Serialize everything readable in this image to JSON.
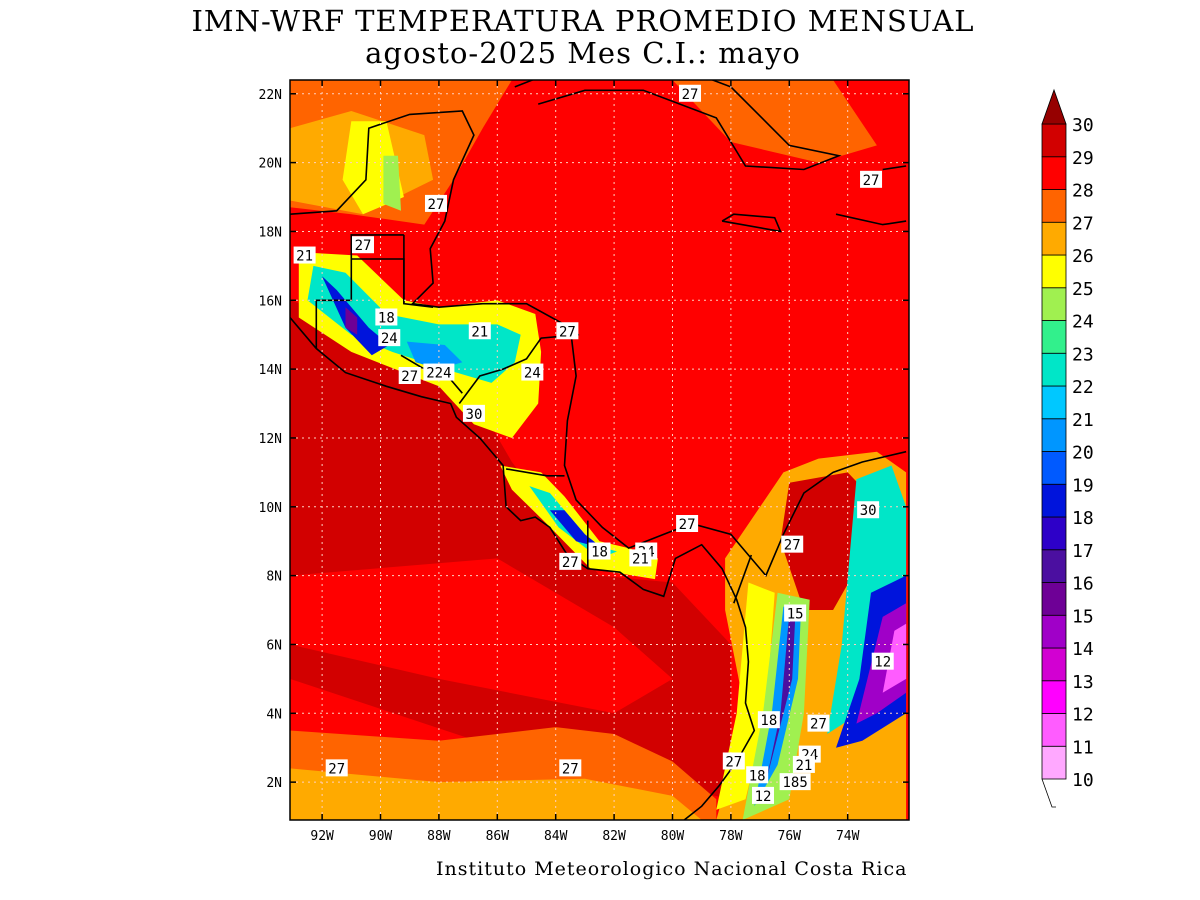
{
  "title": {
    "line1": "IMN-WRF  TEMPERATURA PROMEDIO MENSUAL",
    "line2": "agosto-2025 Mes C.I.: mayo"
  },
  "credit": "Instituto Meteorologico Nacional Costa Rica",
  "map": {
    "lon_range": [
      -93.1,
      -71.9
    ],
    "lat_range": [
      0.9,
      22.4
    ],
    "lon_ticks": [
      {
        "lon": -92,
        "label": "92W"
      },
      {
        "lon": -90,
        "label": "90W"
      },
      {
        "lon": -88,
        "label": "88W"
      },
      {
        "lon": -86,
        "label": "86W"
      },
      {
        "lon": -84,
        "label": "84W"
      },
      {
        "lon": -82,
        "label": "82W"
      },
      {
        "lon": -80,
        "label": "80W"
      },
      {
        "lon": -78,
        "label": "78W"
      },
      {
        "lon": -76,
        "label": "76W"
      },
      {
        "lon": -74,
        "label": "74W"
      }
    ],
    "lat_ticks": [
      {
        "lat": 2,
        "label": "2N"
      },
      {
        "lat": 4,
        "label": "4N"
      },
      {
        "lat": 6,
        "label": "6N"
      },
      {
        "lat": 8,
        "label": "8N"
      },
      {
        "lat": 10,
        "label": "10N"
      },
      {
        "lat": 12,
        "label": "12N"
      },
      {
        "lat": 14,
        "label": "14N"
      },
      {
        "lat": 16,
        "label": "16N"
      },
      {
        "lat": 18,
        "label": "18N"
      },
      {
        "lat": 20,
        "label": "20N"
      },
      {
        "lat": 22,
        "label": "22N"
      }
    ],
    "grid": true,
    "contour_labels": [
      {
        "lon": -79.4,
        "lat": 22.0,
        "text": "27"
      },
      {
        "lon": -73.2,
        "lat": 19.5,
        "text": "27"
      },
      {
        "lon": -88.1,
        "lat": 18.8,
        "text": "27"
      },
      {
        "lon": -90.6,
        "lat": 17.6,
        "text": "27"
      },
      {
        "lon": -92.6,
        "lat": 17.3,
        "text": "21"
      },
      {
        "lon": -89.8,
        "lat": 15.5,
        "text": "18"
      },
      {
        "lon": -89.7,
        "lat": 14.9,
        "text": "24"
      },
      {
        "lon": -86.6,
        "lat": 15.1,
        "text": "21"
      },
      {
        "lon": -83.6,
        "lat": 15.1,
        "text": "27"
      },
      {
        "lon": -88.0,
        "lat": 13.9,
        "text": "224"
      },
      {
        "lon": -89.0,
        "lat": 13.8,
        "text": "27"
      },
      {
        "lon": -84.8,
        "lat": 13.9,
        "text": "24"
      },
      {
        "lon": -86.8,
        "lat": 12.7,
        "text": "30"
      },
      {
        "lon": -73.3,
        "lat": 9.9,
        "text": "30"
      },
      {
        "lon": -79.5,
        "lat": 9.5,
        "text": "27"
      },
      {
        "lon": -75.9,
        "lat": 8.9,
        "text": "27"
      },
      {
        "lon": -82.5,
        "lat": 8.7,
        "text": "18"
      },
      {
        "lon": -80.9,
        "lat": 8.7,
        "text": "24"
      },
      {
        "lon": -81.1,
        "lat": 8.5,
        "text": "21"
      },
      {
        "lon": -83.5,
        "lat": 8.4,
        "text": "27"
      },
      {
        "lon": -75.8,
        "lat": 6.9,
        "text": "15"
      },
      {
        "lon": -72.8,
        "lat": 5.5,
        "text": "12"
      },
      {
        "lon": -75.0,
        "lat": 3.7,
        "text": "27"
      },
      {
        "lon": -76.7,
        "lat": 3.8,
        "text": "18"
      },
      {
        "lon": -75.3,
        "lat": 2.8,
        "text": "24"
      },
      {
        "lon": -75.5,
        "lat": 2.5,
        "text": "21"
      },
      {
        "lon": -77.9,
        "lat": 2.6,
        "text": "27"
      },
      {
        "lon": -77.1,
        "lat": 2.2,
        "text": "18"
      },
      {
        "lon": -75.8,
        "lat": 2.0,
        "text": "185"
      },
      {
        "lon": -76.9,
        "lat": 1.6,
        "text": "12"
      },
      {
        "lon": -91.5,
        "lat": 2.4,
        "text": "27"
      },
      {
        "lon": -83.5,
        "lat": 2.4,
        "text": "27"
      }
    ]
  },
  "colorbar": {
    "levels": [
      "10",
      "11",
      "12",
      "13",
      "14",
      "15",
      "16",
      "17",
      "18",
      "19",
      "20",
      "21",
      "22",
      "23",
      "24",
      "25",
      "26",
      "27",
      "28",
      "29",
      "30"
    ],
    "colors": [
      "#ffa8ff",
      "#ff5cff",
      "#ff00ff",
      "#d200d2",
      "#a000c8",
      "#6e0096",
      "#4b0fa0",
      "#2d00c8",
      "#0014dc",
      "#005aff",
      "#0096ff",
      "#00c8ff",
      "#00e6c8",
      "#32f08c",
      "#a0f050",
      "#ffff00",
      "#ffaa00",
      "#ff6400",
      "#ff0000",
      "#d20000",
      "#960000"
    ]
  }
}
